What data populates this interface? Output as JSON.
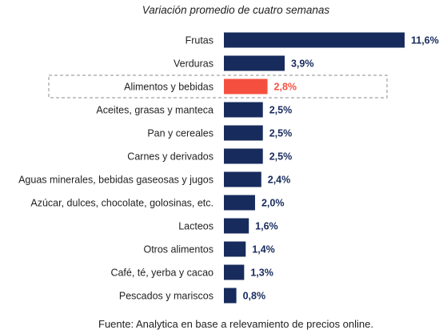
{
  "chart_data": {
    "type": "bar",
    "orientation": "horizontal",
    "title": "Variación promedio de cuatro semanas",
    "source": "Fuente: Analytica en base a relevamiento de precios online.",
    "categories": [
      "Frutas",
      "Verduras",
      "Alimentos y bebidas",
      "Aceites, grasas y manteca",
      "Pan y cereales",
      "Carnes y derivados",
      "Aguas minerales, bebidas gaseosas y jugos",
      "Azúcar, dulces, chocolate, golosinas, etc.",
      "Lacteos",
      "Otros alimentos",
      "Café, té, yerba y cacao",
      "Pescados y mariscos"
    ],
    "values": [
      11.6,
      3.9,
      2.8,
      2.5,
      2.5,
      2.5,
      2.4,
      2.0,
      1.6,
      1.4,
      1.3,
      0.8
    ],
    "value_labels": [
      "11,6%",
      "3,9%",
      "2,8%",
      "2,5%",
      "2,5%",
      "2,5%",
      "2,4%",
      "2,0%",
      "1,6%",
      "1,4%",
      "1,3%",
      "0,8%"
    ],
    "highlight_index": 2,
    "colors": {
      "bar": "#172b5c",
      "highlight": "#f5503f",
      "value_label": "#172b5c",
      "highlight_label": "#f5503f"
    },
    "grid": false,
    "legend": "none"
  }
}
